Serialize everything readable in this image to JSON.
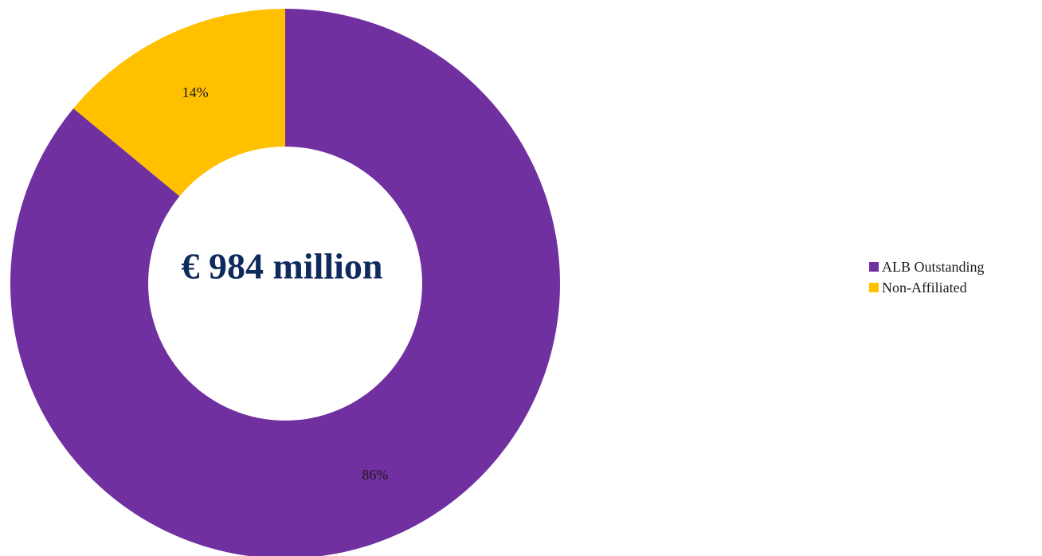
{
  "chart_data": {
    "type": "pie",
    "variant": "donut",
    "center_label": "€ 984 million",
    "center_label_color": "#0f2a5c",
    "slices": [
      {
        "label": "ALB Outstanding",
        "value": 86,
        "value_label": "86%",
        "color": "#7030a0"
      },
      {
        "label": "Non-Affiliated",
        "value": 14,
        "value_label": "14%",
        "color": "#ffc000"
      }
    ],
    "legend_position": "right"
  }
}
